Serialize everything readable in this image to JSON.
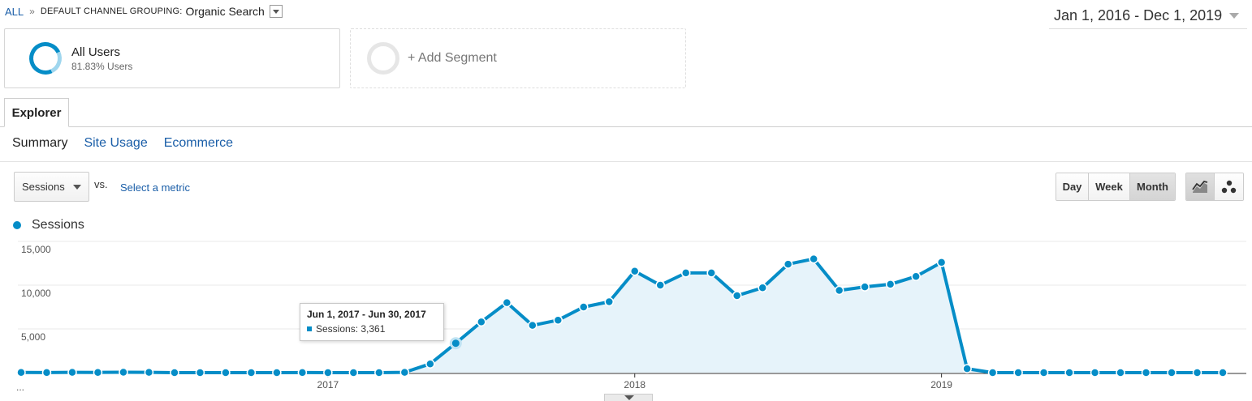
{
  "breadcrumb": {
    "all": "ALL",
    "separator": "»",
    "label": "DEFAULT CHANNEL GROUPING:",
    "value": "Organic Search"
  },
  "date_range": "Jan 1, 2016 - Dec 1, 2019",
  "segments": {
    "primary": {
      "name": "All Users",
      "sub": "81.83% Users"
    },
    "add": "+ Add Segment"
  },
  "tabs": {
    "explorer": "Explorer"
  },
  "subtabs": [
    "Summary",
    "Site Usage",
    "Ecommerce"
  ],
  "controls": {
    "metric": "Sessions",
    "vs": "vs.",
    "select_metric": "Select a metric",
    "granularity": [
      "Day",
      "Week",
      "Month"
    ],
    "active_granularity": "Month",
    "views": [
      "line-chart-icon",
      "motion-chart-icon"
    ]
  },
  "legend": {
    "series": "Sessions",
    "color": "#058dc7"
  },
  "tooltip": {
    "title": "Jun 1, 2017 - Jun 30, 2017",
    "label": "Sessions:",
    "value": "3,361"
  },
  "chart_data": {
    "type": "area",
    "x": [
      "2016-01",
      "2016-02",
      "2016-03",
      "2016-04",
      "2016-05",
      "2016-06",
      "2016-07",
      "2016-08",
      "2016-09",
      "2016-10",
      "2016-11",
      "2016-12",
      "2017-01",
      "2017-02",
      "2017-03",
      "2017-04",
      "2017-05",
      "2017-06",
      "2017-07",
      "2017-08",
      "2017-09",
      "2017-10",
      "2017-11",
      "2017-12",
      "2018-01",
      "2018-02",
      "2018-03",
      "2018-04",
      "2018-05",
      "2018-06",
      "2018-07",
      "2018-08",
      "2018-09",
      "2018-10",
      "2018-11",
      "2018-12",
      "2019-01",
      "2019-02",
      "2019-03",
      "2019-04",
      "2019-05",
      "2019-06",
      "2019-07",
      "2019-08",
      "2019-09",
      "2019-10",
      "2019-11",
      "2019-12"
    ],
    "series": [
      {
        "name": "Sessions",
        "color": "#058dc7",
        "values": [
          20,
          15,
          30,
          25,
          45,
          35,
          5,
          0,
          0,
          0,
          0,
          10,
          0,
          0,
          5,
          40,
          1000,
          3361,
          5800,
          8000,
          5400,
          6000,
          7500,
          8100,
          11600,
          10000,
          11400,
          11400,
          8800,
          9700,
          12400,
          13000,
          9400,
          9800,
          10100,
          11000,
          12600,
          450,
          0,
          0,
          0,
          0,
          0,
          0,
          0,
          0,
          0,
          0
        ]
      }
    ],
    "ylim": [
      0,
      15000
    ],
    "yticks": [
      5000,
      10000,
      15000
    ],
    "ytick_labels": [
      "5,000",
      "10,000",
      "15,000"
    ],
    "xtick_labels": [
      "2017",
      "2018",
      "2019"
    ],
    "xtick_positions": [
      "2017-01",
      "2018-01",
      "2019-01"
    ],
    "left_label": "...",
    "highlight": "2017-06",
    "grid": true,
    "legend": "top-left"
  }
}
